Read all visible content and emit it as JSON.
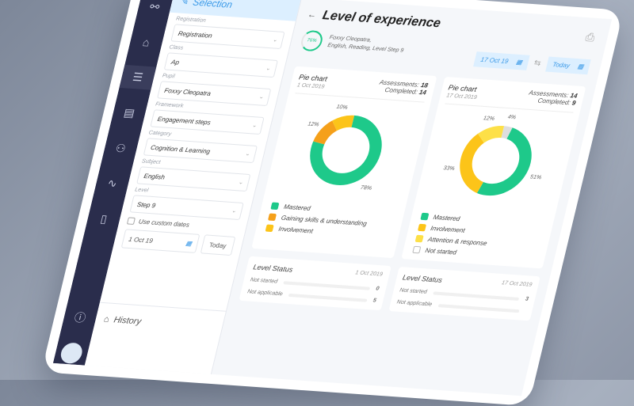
{
  "nav": {
    "items": [
      "share-icon",
      "home-icon",
      "list-icon",
      "report-icon",
      "users-icon",
      "activity-icon",
      "book-icon",
      "help-icon",
      "avatar"
    ]
  },
  "selection": {
    "title": "Selection",
    "fields": [
      {
        "label": "Registration",
        "value": "Registration"
      },
      {
        "label": "Class",
        "value": "Ap"
      },
      {
        "label": "Pupil",
        "value": "Foxxy Cleopatra"
      },
      {
        "label": "Framework",
        "value": "Engagement steps"
      },
      {
        "label": "Category",
        "value": "Cognition & Learning"
      },
      {
        "label": "Subject",
        "value": "English"
      },
      {
        "label": "Level",
        "value": "Step 9"
      }
    ],
    "custom_dates_label": "Use custom dates",
    "date": "1 Oct 19",
    "today": "Today",
    "history": "History"
  },
  "main": {
    "title": "Level of experience",
    "progress": "76%",
    "pupil": "Foxxy Cleopatra,",
    "details": "English, Reading, Level Step 9",
    "date_from": "17 Oct 19",
    "date_to": "Today"
  },
  "cards": [
    {
      "title": "Pie chart",
      "date": "1 Oct 2019",
      "assess_label": "Assessments:",
      "assess": "18",
      "completed_label": "Completed:",
      "completed": "14"
    },
    {
      "title": "Pie chart",
      "date": "17 Oct 2019",
      "assess_label": "Assessments:",
      "assess": "14",
      "completed_label": "Completed:",
      "completed": "9"
    }
  ],
  "chart_data": [
    {
      "type": "pie",
      "donut": true,
      "categories": [
        "Mastered",
        "Gaining skills & understanding",
        "Involvement"
      ],
      "values": [
        78,
        12,
        10
      ],
      "colors": [
        "#1ec98a",
        "#f5a01a",
        "#fcc419"
      ]
    },
    {
      "type": "pie",
      "donut": true,
      "categories": [
        "Not started",
        "Mastered",
        "Involvement",
        "Attention & response"
      ],
      "values": [
        4,
        51,
        33,
        12
      ],
      "colors": [
        "#dedede",
        "#1ec98a",
        "#fcc419",
        "#fde047"
      ],
      "legend_order": [
        1,
        2,
        3,
        0
      ]
    }
  ],
  "level_status": [
    {
      "title": "Level Status",
      "date": "1 Oct 2019",
      "rows": [
        {
          "label": "Not started",
          "value": "0"
        },
        {
          "label": "Not applicable",
          "value": "5"
        }
      ]
    },
    {
      "title": "Level Status",
      "date": "17 Oct 2019",
      "rows": [
        {
          "label": "Not started",
          "value": "3"
        },
        {
          "label": "Not applicable",
          "value": ""
        }
      ]
    }
  ]
}
